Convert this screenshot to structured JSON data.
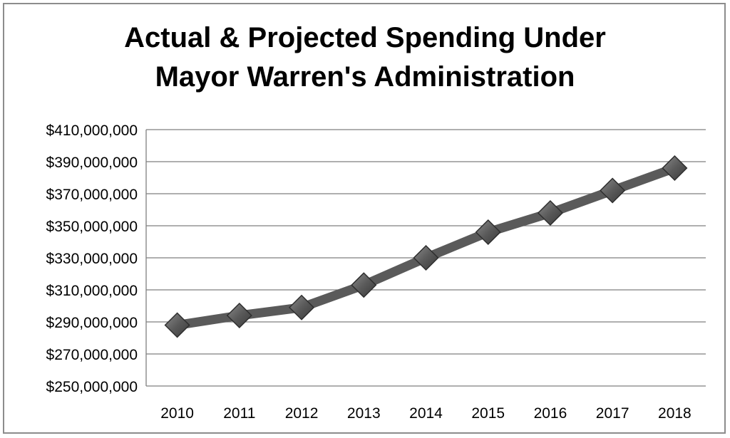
{
  "chart_data": {
    "type": "line",
    "title_lines": [
      "Actual & Projected Spending Under",
      "Mayor Warren's Administration"
    ],
    "categories": [
      "2010",
      "2011",
      "2012",
      "2013",
      "2014",
      "2015",
      "2016",
      "2017",
      "2018"
    ],
    "series": [
      {
        "values": [
          288000000,
          294000000,
          299000000,
          313000000,
          330000000,
          346000000,
          358000000,
          372000000,
          386000000
        ]
      }
    ],
    "ylim": [
      250000000,
      410000000
    ],
    "y_ticks": [
      410000000,
      390000000,
      370000000,
      350000000,
      330000000,
      310000000,
      290000000,
      270000000,
      250000000
    ],
    "y_tick_labels": [
      "$410,000,000",
      "$390,000,000",
      "$370,000,000",
      "$350,000,000",
      "$330,000,000",
      "$310,000,000",
      "$290,000,000",
      "$270,000,000",
      "$250,000,000"
    ],
    "grid": true,
    "legend": "none",
    "colors": {
      "line": "#5a5a5a",
      "marker": "#555555",
      "grid": "#7f7f7f"
    }
  }
}
